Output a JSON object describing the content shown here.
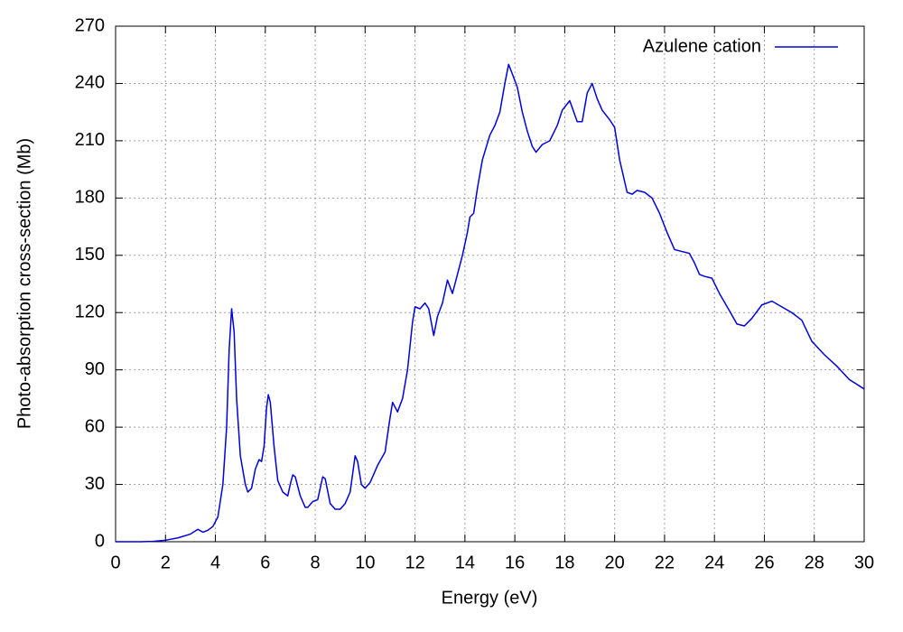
{
  "chart_data": {
    "type": "line",
    "xlabel": "Energy (eV)",
    "ylabel": "Photo-absorption cross-section (Mb)",
    "xlim": [
      0,
      30
    ],
    "ylim": [
      0,
      270
    ],
    "xticks": [
      0,
      2,
      4,
      6,
      8,
      10,
      12,
      14,
      16,
      18,
      20,
      22,
      24,
      26,
      28,
      30
    ],
    "yticks": [
      0,
      30,
      60,
      90,
      120,
      150,
      180,
      210,
      240,
      270
    ],
    "grid": true,
    "legend": "upper right",
    "x": [
      0,
      1,
      1.5,
      2,
      2.5,
      3,
      3.3,
      3.5,
      3.7,
      3.9,
      4.1,
      4.3,
      4.45,
      4.55,
      4.65,
      4.75,
      4.85,
      5.0,
      5.2,
      5.3,
      5.45,
      5.6,
      5.75,
      5.85,
      5.95,
      6.05,
      6.12,
      6.2,
      6.35,
      6.5,
      6.7,
      6.9,
      7.0,
      7.1,
      7.2,
      7.4,
      7.6,
      7.7,
      7.9,
      8.1,
      8.3,
      8.4,
      8.6,
      8.8,
      9.0,
      9.2,
      9.4,
      9.6,
      9.7,
      9.85,
      10.0,
      10.2,
      10.5,
      10.8,
      11.0,
      11.1,
      11.3,
      11.5,
      11.7,
      11.9,
      12.0,
      12.2,
      12.4,
      12.55,
      12.75,
      12.9,
      13.1,
      13.3,
      13.5,
      13.7,
      13.9,
      14.1,
      14.2,
      14.35,
      14.5,
      14.7,
      15.0,
      15.2,
      15.4,
      15.6,
      15.75,
      15.9,
      16.1,
      16.3,
      16.5,
      16.7,
      16.85,
      17.1,
      17.4,
      17.7,
      17.9,
      18.2,
      18.5,
      18.7,
      18.9,
      19.1,
      19.3,
      19.5,
      19.8,
      20.0,
      20.2,
      20.5,
      20.7,
      20.9,
      21.2,
      21.5,
      21.8,
      22.1,
      22.4,
      22.7,
      23.0,
      23.2,
      23.4,
      23.6,
      23.9,
      24.2,
      24.6,
      24.9,
      25.2,
      25.5,
      25.9,
      26.3,
      26.7,
      27.1,
      27.5,
      27.9,
      28.4,
      28.9,
      29.4,
      30
    ],
    "series": [
      {
        "name": "Azulene cation",
        "color": "#0000dd",
        "values": [
          0,
          0,
          0.2,
          0.8,
          2,
          4,
          6.5,
          5,
          6,
          8,
          13,
          30,
          60,
          100,
          122,
          110,
          75,
          45,
          30,
          26,
          28,
          38,
          43,
          42,
          50,
          70,
          77,
          73,
          50,
          32,
          26,
          24,
          30,
          35,
          34,
          24,
          18,
          18,
          21,
          22,
          34,
          33,
          20,
          17,
          17,
          20,
          26,
          45,
          42,
          30,
          28,
          31,
          40,
          47,
          65,
          73,
          68,
          75,
          90,
          115,
          123,
          122,
          125,
          122,
          108,
          118,
          125,
          137,
          130,
          140,
          150,
          162,
          170,
          172,
          185,
          200,
          213,
          218,
          225,
          240,
          250,
          245,
          238,
          225,
          215,
          207,
          204,
          208,
          210,
          218,
          226,
          231,
          220,
          220,
          235,
          240,
          232,
          226,
          221,
          217,
          200,
          183,
          182,
          184,
          183,
          180,
          172,
          162,
          153,
          152,
          151,
          146,
          140,
          139,
          138,
          130,
          121,
          114,
          113,
          117,
          124,
          126,
          123,
          120,
          116,
          105,
          98,
          92,
          85,
          80
        ]
      }
    ]
  }
}
